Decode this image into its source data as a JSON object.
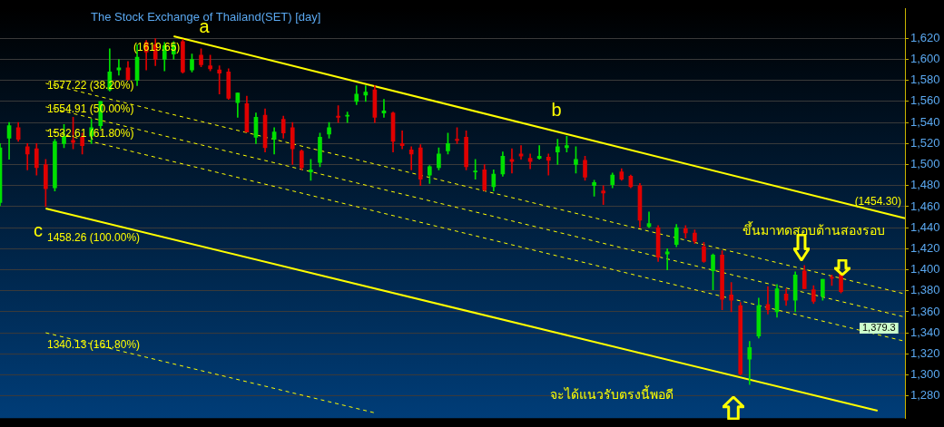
{
  "chart_data": {
    "type": "candlestick",
    "title": "The Stock Exchange of Thailand(SET) [day]",
    "categories": [
      null,
      null,
      null,
      null,
      null,
      null,
      null,
      null,
      null,
      null,
      null,
      null,
      null,
      null,
      null,
      null,
      null,
      null,
      null,
      null,
      null,
      null,
      null,
      null,
      null,
      null,
      null,
      null,
      null,
      null,
      null,
      null,
      null,
      null,
      null,
      null,
      null,
      null,
      null,
      null,
      null,
      null,
      null,
      null,
      null,
      null,
      null,
      null,
      null,
      null,
      null,
      null,
      null,
      null,
      null,
      null,
      null,
      null,
      null,
      null,
      null,
      null,
      null,
      null,
      null,
      null,
      null,
      null,
      null,
      null,
      null,
      null,
      null,
      null,
      null,
      null,
      null,
      null,
      null,
      null,
      null,
      null,
      null,
      null,
      null,
      null,
      null,
      null,
      null,
      null,
      null,
      null,
      null,
      null,
      null,
      null,
      null,
      null,
      null,
      null
    ],
    "ohlc": [
      [
        1464,
        1520,
        1461,
        1516
      ],
      [
        1525,
        1540,
        1505,
        1537
      ],
      [
        1535,
        1540,
        1522,
        1524
      ],
      [
        1517,
        1520,
        1495,
        1510
      ],
      [
        1515,
        1520,
        1490,
        1497
      ],
      [
        1500,
        1505,
        1460,
        1477
      ],
      [
        1478,
        1524,
        1475,
        1522
      ],
      [
        1520,
        1538,
        1516,
        1527
      ],
      [
        1523,
        1545,
        1515,
        1521
      ],
      [
        1526,
        1530,
        1510,
        1518
      ],
      [
        1527,
        1543,
        1520,
        1535
      ],
      [
        1537,
        1560,
        1534,
        1560
      ],
      [
        1571,
        1610,
        1570,
        1588
      ],
      [
        1590,
        1600,
        1585,
        1592
      ],
      [
        1592,
        1598,
        1580,
        1581
      ],
      [
        1580,
        1614,
        1575,
        1602
      ],
      [
        1616,
        1618,
        1590,
        1607
      ],
      [
        1614,
        1619.65,
        1594,
        1600
      ],
      [
        1600,
        1616,
        1589,
        1613
      ],
      [
        1605,
        1617,
        1600,
        1614
      ],
      [
        1617,
        1619,
        1587,
        1588
      ],
      [
        1590,
        1605,
        1588,
        1600
      ],
      [
        1604,
        1610,
        1593,
        1595
      ],
      [
        1594,
        1604,
        1589,
        1591
      ],
      [
        1590,
        1594,
        1567,
        1587
      ],
      [
        1588,
        1591,
        1562,
        1563
      ],
      [
        1559,
        1568,
        1545,
        1568
      ],
      [
        1558,
        1565,
        1531,
        1531
      ],
      [
        1526,
        1549,
        1520,
        1545
      ],
      [
        1547,
        1553,
        1512,
        1516
      ],
      [
        1524,
        1535,
        1510,
        1531
      ],
      [
        1543,
        1546,
        1525,
        1530
      ],
      [
        1535,
        1540,
        1500,
        1515
      ],
      [
        1513,
        1514,
        1495,
        1497
      ],
      [
        1493,
        1505,
        1485,
        1495
      ],
      [
        1502,
        1530,
        1498,
        1526
      ],
      [
        1529,
        1540,
        1525,
        1535
      ],
      [
        1546,
        1556,
        1540,
        1545
      ],
      [
        1546,
        1550,
        1540,
        1547
      ],
      [
        1560,
        1575,
        1557,
        1567
      ],
      [
        1566,
        1575,
        1560,
        1569
      ],
      [
        1571,
        1575,
        1540,
        1545
      ],
      [
        1549,
        1562,
        1545,
        1551
      ],
      [
        1549,
        1550,
        1512,
        1522
      ],
      [
        1520,
        1532,
        1515,
        1518
      ],
      [
        1514,
        1517,
        1495,
        1510
      ],
      [
        1516,
        1519,
        1480,
        1486
      ],
      [
        1490,
        1499,
        1482,
        1498
      ],
      [
        1497,
        1516,
        1495,
        1510
      ],
      [
        1513,
        1530,
        1510,
        1520
      ],
      [
        1524,
        1535,
        1520,
        1523
      ],
      [
        1526,
        1532,
        1495,
        1498
      ],
      [
        1493,
        1505,
        1486,
        1494
      ],
      [
        1495,
        1500,
        1475,
        1476
      ],
      [
        1479,
        1495,
        1475,
        1491
      ],
      [
        1491,
        1512,
        1489,
        1508
      ],
      [
        1505,
        1515,
        1492,
        1503
      ],
      [
        1510,
        1518,
        1505,
        1508
      ],
      [
        1506,
        1510,
        1496,
        1503
      ],
      [
        1506,
        1518,
        1505,
        1508
      ],
      [
        1507,
        1510,
        1490,
        1504
      ],
      [
        1512,
        1524,
        1500,
        1517
      ],
      [
        1516,
        1527,
        1512,
        1518
      ],
      [
        1500,
        1517,
        1492,
        1505
      ],
      [
        1504,
        1508,
        1485,
        1488
      ],
      [
        1480,
        1485,
        1470,
        1483
      ],
      [
        1475,
        1480,
        1462,
        1473
      ],
      [
        1481,
        1492,
        1478,
        1490
      ],
      [
        1493,
        1496,
        1485,
        1486
      ],
      [
        1489,
        1490,
        1478,
        1479
      ],
      [
        1480,
        1482,
        1440,
        1447
      ],
      [
        1441,
        1455,
        1440,
        1444
      ],
      [
        1440,
        1442,
        1408,
        1412
      ],
      [
        1415,
        1420,
        1400,
        1417
      ],
      [
        1424,
        1443,
        1422,
        1440
      ],
      [
        1439,
        1442,
        1430,
        1435
      ],
      [
        1435,
        1438,
        1425,
        1427
      ],
      [
        1422,
        1426,
        1407,
        1408
      ],
      [
        1399,
        1415,
        1381,
        1414
      ],
      [
        1414,
        1418,
        1362,
        1372
      ],
      [
        1376,
        1388,
        1360,
        1371
      ],
      [
        1366,
        1369,
        1300,
        1301
      ],
      [
        1315,
        1332,
        1291,
        1326
      ],
      [
        1337,
        1373,
        1335,
        1366
      ],
      [
        1367,
        1384,
        1358,
        1362
      ],
      [
        1360,
        1386,
        1355,
        1382
      ],
      [
        1377,
        1382,
        1366,
        1371
      ],
      [
        1371,
        1398,
        1360,
        1395
      ],
      [
        1399,
        1404,
        1382,
        1382
      ],
      [
        1381,
        1385,
        1368,
        1370
      ],
      [
        1375,
        1391,
        1371,
        1391
      ],
      [
        1393,
        1395,
        1385,
        1392
      ],
      [
        1396,
        1397,
        1378,
        1379.3
      ],
      null,
      null,
      null,
      null,
      null,
      null,
      null
    ],
    "colors": [
      "#00e000",
      "#00e000",
      "#e00000",
      "#e00000",
      "#e00000",
      "#e00000",
      "#00e000",
      "#00e000",
      "#e00000",
      "#e00000",
      "#00e000",
      "#00e000",
      "#00e000",
      "#00e000",
      "#e00000",
      "#00e000",
      "#e00000",
      "#e00000",
      "#00e000",
      "#00e000",
      "#e00000",
      "#00e000",
      "#e00000",
      "#e00000",
      "#e00000",
      "#e00000",
      "#00e000",
      "#e00000",
      "#00e000",
      "#e00000",
      "#00e000",
      "#e00000",
      "#e00000",
      "#e00000",
      "#00e000",
      "#00e000",
      "#00e000",
      "#e00000",
      "#00e000",
      "#00e000",
      "#00e000",
      "#e00000",
      "#00e000",
      "#e00000",
      "#e00000",
      "#e00000",
      "#e00000",
      "#00e000",
      "#00e000",
      "#00e000",
      "#e00000",
      "#e00000",
      "#00e000",
      "#e00000",
      "#00e000",
      "#00e000",
      "#e00000",
      "#e00000",
      "#e00000",
      "#00e000",
      "#e00000",
      "#00e000",
      "#00e000",
      "#00e000",
      "#e00000",
      "#00e000",
      "#e00000",
      "#00e000",
      "#e00000",
      "#e00000",
      "#e00000",
      "#00e000",
      "#e00000",
      "#00e000",
      "#00e000",
      "#e00000",
      "#e00000",
      "#e00000",
      "#00e000",
      "#e00000",
      "#e00000",
      "#e00000",
      "#00e000",
      "#00e000",
      "#e00000",
      "#00e000",
      "#e00000",
      "#00e000",
      "#e00000",
      "#e00000",
      "#00e000",
      "#e00000",
      "#e00000",
      null,
      null,
      null,
      null,
      null,
      null,
      null
    ],
    "series": [
      {
        "type": "line",
        "color": "#ffff00",
        "line_style": "solid",
        "values": [
          null,
          null,
          null,
          null,
          null,
          null,
          null,
          null,
          null,
          null,
          null,
          null,
          null,
          null,
          null,
          null,
          null,
          null,
          null,
          1622,
          null,
          null,
          null,
          null,
          null,
          null,
          null,
          null,
          null,
          null,
          null,
          null,
          null,
          null,
          null,
          null,
          null,
          null,
          null,
          null,
          null,
          null,
          null,
          null,
          null,
          null,
          null,
          null,
          null,
          null,
          null,
          null,
          null,
          null,
          null,
          null,
          null,
          null,
          null,
          null,
          null,
          null,
          null,
          null,
          null,
          null,
          null,
          null,
          null,
          null,
          null,
          null,
          null,
          null,
          null,
          null,
          null,
          null,
          null,
          null,
          null,
          null,
          null,
          null,
          null,
          null,
          null,
          null,
          null,
          null,
          null,
          null,
          null,
          null,
          null,
          null,
          null,
          null,
          null,
          1449
        ]
      },
      {
        "type": "line",
        "color": "#ffff00",
        "line_style": "solid",
        "values": [
          null,
          null,
          null,
          null,
          null,
          1458.26,
          null,
          null,
          null,
          null,
          null,
          null,
          null,
          null,
          null,
          null,
          null,
          null,
          null,
          null,
          null,
          null,
          null,
          null,
          null,
          null,
          null,
          null,
          null,
          null,
          null,
          null,
          null,
          null,
          null,
          null,
          null,
          null,
          null,
          null,
          null,
          null,
          null,
          null,
          null,
          null,
          null,
          null,
          null,
          null,
          null,
          null,
          null,
          null,
          null,
          null,
          null,
          null,
          null,
          null,
          null,
          null,
          null,
          null,
          null,
          null,
          null,
          null,
          null,
          null,
          null,
          null,
          null,
          null,
          null,
          null,
          null,
          null,
          null,
          null,
          null,
          null,
          null,
          null,
          null,
          null,
          null,
          null,
          null,
          null,
          null,
          null,
          null,
          null,
          null,
          null,
          1266,
          null,
          null,
          null
        ]
      },
      {
        "type": "line",
        "color": "#ffff00",
        "line_style": "dashed",
        "values": [
          null,
          null,
          null,
          null,
          null,
          1577.22,
          null,
          null,
          null,
          null,
          null,
          null,
          null,
          null,
          null,
          null,
          null,
          null,
          null,
          null,
          null,
          null,
          null,
          null,
          null,
          null,
          null,
          null,
          null,
          null,
          null,
          null,
          null,
          null,
          null,
          null,
          null,
          null,
          null,
          null,
          null,
          null,
          null,
          null,
          null,
          null,
          null,
          null,
          null,
          null,
          null,
          null,
          null,
          null,
          null,
          null,
          null,
          null,
          null,
          null,
          null,
          null,
          null,
          null,
          null,
          null,
          null,
          null,
          null,
          null,
          null,
          null,
          null,
          null,
          null,
          null,
          null,
          null,
          null,
          null,
          null,
          null,
          null,
          null,
          null,
          null,
          null,
          null,
          null,
          null,
          null,
          null,
          null,
          null,
          null,
          null,
          null,
          null,
          null,
          1377
        ]
      },
      {
        "type": "line",
        "color": "#ffff00",
        "line_style": "dashed",
        "values": [
          null,
          null,
          null,
          null,
          null,
          1554.91,
          null,
          null,
          null,
          null,
          null,
          null,
          null,
          null,
          null,
          null,
          null,
          null,
          null,
          null,
          null,
          null,
          null,
          null,
          null,
          null,
          null,
          null,
          null,
          null,
          null,
          null,
          null,
          null,
          null,
          null,
          null,
          null,
          null,
          null,
          null,
          null,
          null,
          null,
          null,
          null,
          null,
          null,
          null,
          null,
          null,
          null,
          null,
          null,
          null,
          null,
          null,
          null,
          null,
          null,
          null,
          null,
          null,
          null,
          null,
          null,
          null,
          null,
          null,
          null,
          null,
          null,
          null,
          null,
          null,
          null,
          null,
          null,
          null,
          null,
          null,
          null,
          null,
          null,
          null,
          null,
          null,
          null,
          null,
          null,
          null,
          null,
          null,
          null,
          null,
          null,
          null,
          null,
          null,
          1355
        ]
      },
      {
        "type": "line",
        "color": "#ffff00",
        "line_style": "dashed",
        "values": [
          null,
          null,
          null,
          null,
          null,
          1532.61,
          null,
          null,
          null,
          null,
          null,
          null,
          null,
          null,
          null,
          null,
          null,
          null,
          null,
          null,
          null,
          null,
          null,
          null,
          null,
          null,
          null,
          null,
          null,
          null,
          null,
          null,
          null,
          null,
          null,
          null,
          null,
          null,
          null,
          null,
          null,
          null,
          null,
          null,
          null,
          null,
          null,
          null,
          null,
          null,
          null,
          null,
          null,
          null,
          null,
          null,
          null,
          null,
          null,
          null,
          null,
          null,
          null,
          null,
          null,
          null,
          null,
          null,
          null,
          null,
          null,
          null,
          null,
          null,
          null,
          null,
          null,
          null,
          null,
          null,
          null,
          null,
          null,
          null,
          null,
          null,
          null,
          null,
          null,
          null,
          null,
          null,
          null,
          null,
          null,
          null,
          null,
          null,
          null,
          1332
        ]
      },
      {
        "type": "line",
        "color": "#ffff00",
        "line_style": "dashed",
        "values": [
          null,
          null,
          null,
          null,
          null,
          1340.13,
          null,
          null,
          null,
          null,
          null,
          null,
          null,
          null,
          null,
          null,
          null,
          null,
          null,
          null,
          null,
          null,
          null,
          null,
          null,
          null,
          null,
          null,
          null,
          null,
          null,
          null,
          null,
          null,
          null,
          null,
          null,
          null,
          null,
          null,
          null,
          1264,
          null,
          null,
          null,
          null,
          null,
          null,
          null,
          null,
          null,
          null,
          null,
          null,
          null,
          null,
          null,
          null,
          null,
          null,
          null,
          null,
          null,
          null,
          null,
          null,
          null,
          null,
          null,
          null,
          null,
          null,
          null,
          null,
          null,
          null,
          null,
          null,
          null,
          null,
          null,
          null,
          null,
          null,
          null,
          null,
          null,
          null,
          null,
          null,
          null,
          null,
          null,
          null,
          null,
          null,
          null,
          null,
          null,
          null
        ]
      }
    ],
    "ylim": [
      1259,
      1648
    ],
    "yticks": [
      {
        "value": 1280,
        "label": "1,280"
      },
      {
        "value": 1300,
        "label": "1,300"
      },
      {
        "value": 1320,
        "label": "1,320"
      },
      {
        "value": 1340,
        "label": "1,340"
      },
      {
        "value": 1360,
        "label": "1,360"
      },
      {
        "value": 1380,
        "label": "1,380"
      },
      {
        "value": 1400,
        "label": "1,400"
      },
      {
        "value": 1420,
        "label": "1,420"
      },
      {
        "value": 1440,
        "label": "1,440"
      },
      {
        "value": 1460,
        "label": "1,460"
      },
      {
        "value": 1480,
        "label": "1,480"
      },
      {
        "value": 1500,
        "label": "1,500"
      },
      {
        "value": 1520,
        "label": "1,520"
      },
      {
        "value": 1540,
        "label": "1,540"
      },
      {
        "value": 1560,
        "label": "1,560"
      },
      {
        "value": 1580,
        "label": "1,580"
      },
      {
        "value": 1600,
        "label": "1,600"
      },
      {
        "value": 1620,
        "label": "1,620"
      }
    ],
    "grid": "y",
    "legend": false,
    "tick_labels": "y",
    "annotations": [
      "a",
      "b",
      "c",
      "(1619.65)",
      "1577.22 (38.20%)",
      "1554.91 (50.00%)",
      "1532.61 (61.80%)",
      "1458.26 (100.00%)",
      "1340.13 (161.80%)",
      "(1454.30)",
      "ขึ้นมาทดสอบต้านสองรอบ",
      "จะได้แนวรับตรงนี้พอดี",
      "1,379.3"
    ]
  }
}
